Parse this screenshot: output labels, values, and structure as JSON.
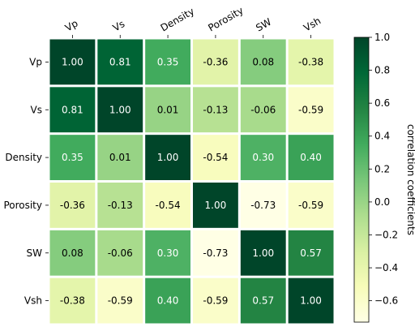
{
  "chart_data": {
    "type": "heatmap",
    "title": "",
    "x_labels": [
      "Vp",
      "Vs",
      "Density",
      "Porosity",
      "SW",
      "Vsh"
    ],
    "y_labels": [
      "Vp",
      "Vs",
      "Density",
      "Porosity",
      "SW",
      "Vsh"
    ],
    "values": [
      [
        1.0,
        0.81,
        0.35,
        -0.36,
        0.08,
        -0.38
      ],
      [
        0.81,
        1.0,
        0.01,
        -0.13,
        -0.06,
        -0.59
      ],
      [
        0.35,
        0.01,
        1.0,
        -0.54,
        0.3,
        0.4
      ],
      [
        -0.36,
        -0.13,
        -0.54,
        1.0,
        -0.73,
        -0.59
      ],
      [
        0.08,
        -0.06,
        0.3,
        -0.73,
        1.0,
        0.57
      ],
      [
        -0.38,
        -0.59,
        0.4,
        -0.59,
        0.57,
        1.0
      ]
    ],
    "value_labels": [
      [
        "1.00",
        "0.81",
        "0.35",
        "-0.36",
        "0.08",
        "-0.38"
      ],
      [
        "0.81",
        "1.00",
        "0.01",
        "-0.13",
        "-0.06",
        "-0.59"
      ],
      [
        "0.35",
        "0.01",
        "1.00",
        "-0.54",
        "0.30",
        "0.40"
      ],
      [
        "-0.36",
        "-0.13",
        "-0.54",
        "1.00",
        "-0.73",
        "-0.59"
      ],
      [
        "0.08",
        "-0.06",
        "0.30",
        "-0.73",
        "1.00",
        "0.57"
      ],
      [
        "-0.38",
        "-0.59",
        "0.40",
        "-0.59",
        "0.57",
        "1.00"
      ]
    ],
    "colormap": "YlGn",
    "color_range": [
      -0.73,
      1.0
    ],
    "colorbar": {
      "label": "correlation coefficients",
      "ticks": [
        1.0,
        0.8,
        0.6,
        0.4,
        0.2,
        0.0,
        -0.2,
        -0.4,
        -0.6
      ],
      "tick_labels": [
        "1.0",
        "0.8",
        "0.6",
        "0.4",
        "0.2",
        "0.0",
        "−0.2",
        "−0.4",
        "−0.6"
      ]
    }
  }
}
